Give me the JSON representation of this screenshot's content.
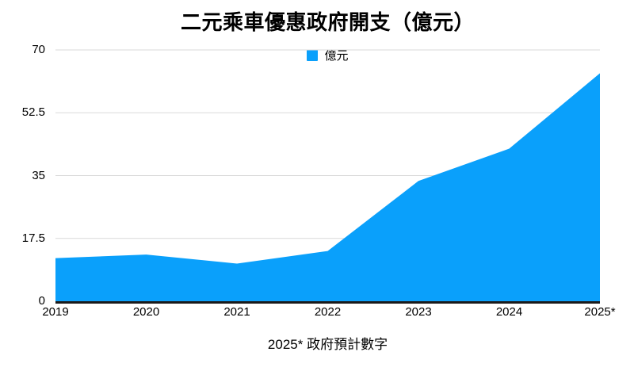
{
  "header": {
    "title": "二元乘車優惠政府開支（億元）"
  },
  "legend": {
    "label": "億元",
    "color": "#0aa0fb"
  },
  "footer": {
    "note": "2025* 政府預計數字"
  },
  "colors": {
    "area": "#0aa0fb",
    "gridline": "#d9d9d9",
    "axis": "#1a1a1a",
    "text": "#000000",
    "background": "#ffffff"
  },
  "chart_data": {
    "type": "area",
    "title": "二元乘車優惠政府開支（億元）",
    "categories": [
      "2019",
      "2020",
      "2021",
      "2022",
      "2023",
      "2024",
      "2025*"
    ],
    "series": [
      {
        "name": "億元",
        "values": [
          12,
          13,
          10.5,
          14,
          33.5,
          42.5,
          63.5
        ]
      }
    ],
    "xlabel": "",
    "ylabel": "億元",
    "ylim": [
      0,
      70
    ],
    "yticks": [
      0,
      17.5,
      35,
      52.5,
      70
    ],
    "ytick_labels": [
      "0",
      "17.5",
      "35",
      "52.5",
      "70"
    ],
    "grid": true,
    "legend_position": "top-center",
    "footnote": "2025* 政府預計數字"
  }
}
